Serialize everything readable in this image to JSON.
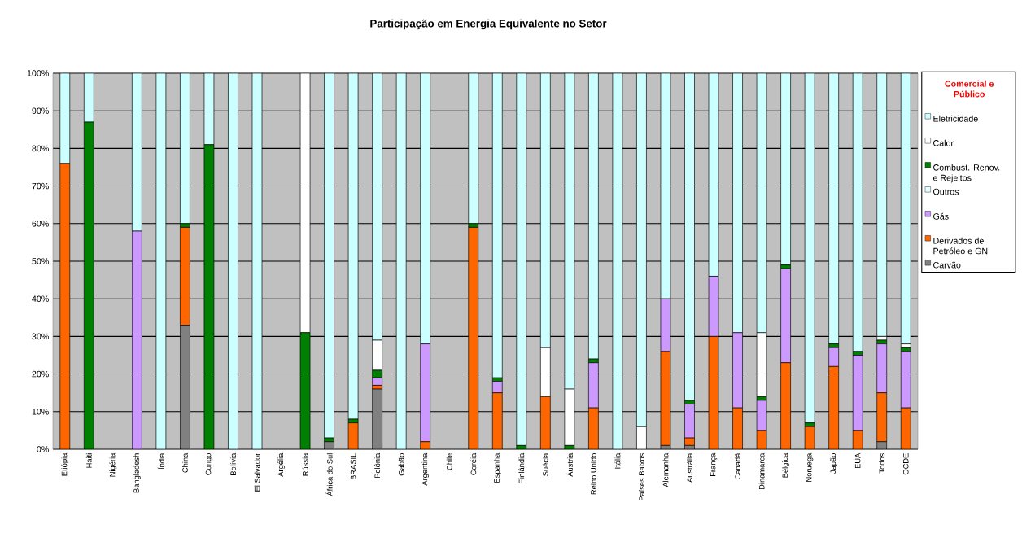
{
  "chart_data": {
    "type": "bar",
    "stacked": true,
    "title": "Participação em Energia Equivalente no Setor",
    "legend_title": "Comercial e Público",
    "categories": [
      "Etiópia",
      "Haiti",
      "Nigéria",
      "Bangladesh",
      "Índia",
      "China",
      "Congo",
      "Bolívia",
      "El Salvador",
      "Argélia",
      "Rússia",
      "África do Sul",
      "BRASIL",
      "Polônia",
      "Gabão",
      "Argentina",
      "Chile",
      "Coréia",
      "Espanha",
      "Finlândia",
      "Suécia",
      "Áustria",
      "Reino Unido",
      "Itália",
      "Países Baixos",
      "Alemanha",
      "Austrália",
      "França",
      "Canadá",
      "Dinamarca",
      "Bélgica",
      "Noruega",
      "Japão",
      "EUA",
      "Todos",
      "OCDE"
    ],
    "series": [
      {
        "name": "Carvão",
        "color": "#808080",
        "values": [
          0,
          0,
          0,
          0,
          0,
          33,
          0,
          0,
          0,
          0,
          0,
          2,
          0,
          16,
          0,
          0,
          0,
          0,
          0,
          0,
          0,
          0,
          0,
          0,
          0,
          1,
          1,
          0,
          0,
          0,
          0,
          0,
          0,
          0,
          2,
          0
        ]
      },
      {
        "name": "Derivados de Petróleo e GN",
        "color": "#ff6600",
        "values": [
          76,
          0,
          0,
          0,
          0,
          26,
          0,
          0,
          0,
          0,
          0,
          0,
          7,
          1,
          0,
          2,
          0,
          59,
          15,
          0,
          14,
          0,
          11,
          0,
          0,
          25,
          2,
          30,
          11,
          5,
          23,
          6,
          22,
          5,
          13,
          11
        ]
      },
      {
        "name": "Gás",
        "color": "#cc99ff",
        "values": [
          0,
          0,
          0,
          58,
          0,
          0,
          0,
          0,
          0,
          0,
          0,
          0,
          0,
          2,
          0,
          26,
          0,
          0,
          3,
          0,
          0,
          0,
          12,
          0,
          0,
          14,
          9,
          16,
          20,
          8,
          25,
          0,
          5,
          20,
          13,
          15
        ]
      },
      {
        "name": "Outros",
        "color": "#e6ffff",
        "values": [
          0,
          0,
          0,
          0,
          0,
          0,
          0,
          0,
          0,
          0,
          0,
          0,
          0,
          0,
          0,
          0,
          0,
          0,
          0,
          0,
          0,
          0,
          0,
          0,
          0,
          0,
          0,
          0,
          0,
          0,
          0,
          0,
          0,
          0,
          0,
          0
        ]
      },
      {
        "name": "Combust. Renov. e Rejeitos",
        "color": "#008000",
        "values": [
          0,
          87,
          0,
          0,
          0,
          1,
          81,
          0,
          0,
          0,
          31,
          1,
          1,
          2,
          0,
          0,
          0,
          1,
          1,
          1,
          0,
          1,
          1,
          0,
          0,
          0,
          1,
          0,
          0,
          1,
          1,
          1,
          1,
          1,
          1,
          1
        ]
      },
      {
        "name": "Calor",
        "color": "#ffffff",
        "values": [
          0,
          0,
          0,
          0,
          0,
          0,
          0,
          0,
          0,
          0,
          69,
          0,
          0,
          8,
          0,
          0,
          0,
          0,
          0,
          0,
          13,
          15,
          0,
          0,
          6,
          0,
          0,
          0,
          0,
          17,
          0,
          0,
          0,
          0,
          1,
          1
        ]
      },
      {
        "name": "Eletricidade",
        "color": "#ccffff",
        "values": [
          24,
          13,
          0,
          42,
          100,
          40,
          19,
          100,
          100,
          0,
          0,
          97,
          92,
          71,
          100,
          72,
          0,
          40,
          81,
          99,
          73,
          84,
          76,
          100,
          94,
          60,
          87,
          54,
          69,
          69,
          51,
          93,
          72,
          74,
          70,
          72
        ]
      }
    ],
    "ylim": [
      0,
      100
    ],
    "yticks": [
      {
        "value": 0,
        "label": "0%"
      },
      {
        "value": 10,
        "label": "10%"
      },
      {
        "value": 20,
        "label": "20%"
      },
      {
        "value": 30,
        "label": "30%"
      },
      {
        "value": 40,
        "label": "40%"
      },
      {
        "value": 50,
        "label": "50%"
      },
      {
        "value": 60,
        "label": "60%"
      },
      {
        "value": 70,
        "label": "70%"
      },
      {
        "value": 80,
        "label": "80%"
      },
      {
        "value": 90,
        "label": "90%"
      },
      {
        "value": 100,
        "label": "100%"
      }
    ],
    "grid": "y",
    "legend": "right"
  }
}
